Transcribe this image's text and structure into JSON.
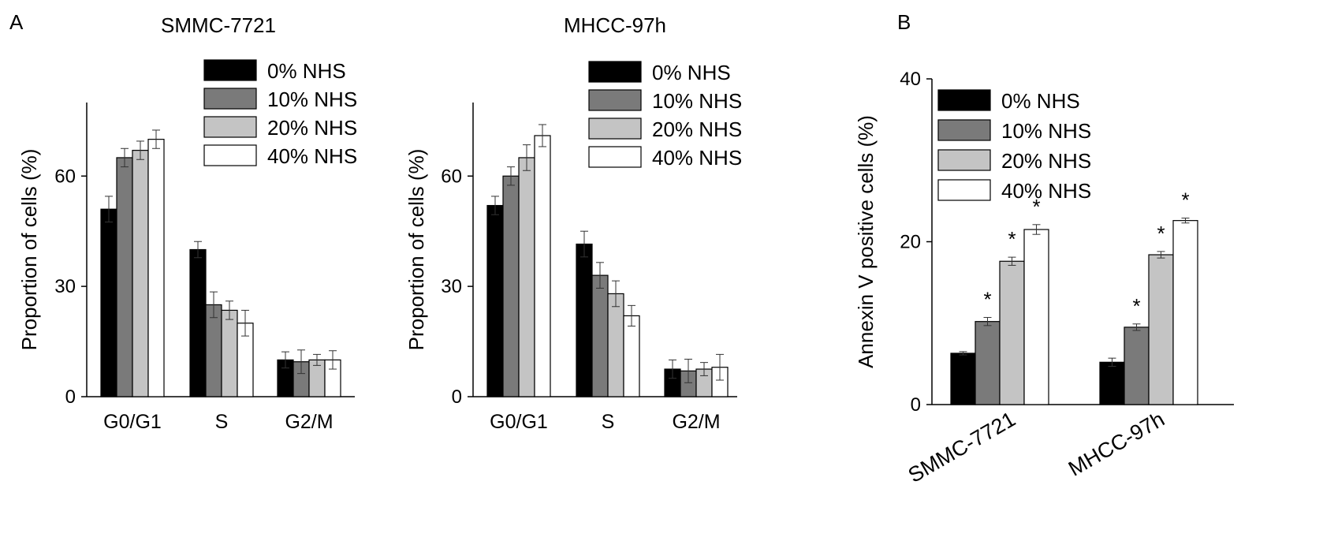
{
  "panels": {
    "a_label": "A",
    "b_label": "B"
  },
  "legend": {
    "entries": [
      "0% NHS",
      "10% NHS",
      "20% NHS",
      "40% NHS"
    ],
    "colors": [
      "#000000",
      "#7a7a7a",
      "#c4c4c4",
      "#ffffff"
    ]
  },
  "chart_data": [
    {
      "type": "bar",
      "title": "SMMC-7721",
      "xlabel": "",
      "ylabel": "Proportion of cells (%)",
      "categories": [
        "G0/G1",
        "S",
        "G2/M"
      ],
      "ylim": [
        0,
        80
      ],
      "yticks": [
        0,
        30,
        60
      ],
      "grid": false,
      "legend_position": "top-right",
      "series": [
        {
          "name": "0% NHS",
          "values": [
            51,
            40,
            10
          ],
          "errors": [
            3.5,
            2.2,
            2.2
          ]
        },
        {
          "name": "10% NHS",
          "values": [
            65,
            25,
            9.5
          ],
          "errors": [
            2.5,
            3.5,
            3.2
          ]
        },
        {
          "name": "20% NHS",
          "values": [
            67,
            23.5,
            10
          ],
          "errors": [
            2.5,
            2.5,
            1.5
          ]
        },
        {
          "name": "40% NHS",
          "values": [
            70,
            20,
            10
          ],
          "errors": [
            2.5,
            3.5,
            2.5
          ]
        }
      ]
    },
    {
      "type": "bar",
      "title": "MHCC-97h",
      "xlabel": "",
      "ylabel": "Proportion of cells (%)",
      "categories": [
        "G0/G1",
        "S",
        "G2/M"
      ],
      "ylim": [
        0,
        80
      ],
      "yticks": [
        0,
        30,
        60
      ],
      "grid": false,
      "legend_position": "top-right",
      "series": [
        {
          "name": "0% NHS",
          "values": [
            52,
            41.5,
            7.5
          ],
          "errors": [
            2.5,
            3.5,
            2.5
          ]
        },
        {
          "name": "10% NHS",
          "values": [
            60,
            33,
            7
          ],
          "errors": [
            2.5,
            3.5,
            3.2
          ]
        },
        {
          "name": "20% NHS",
          "values": [
            65,
            28,
            7.5
          ],
          "errors": [
            3.5,
            3.5,
            1.8
          ]
        },
        {
          "name": "40% NHS",
          "values": [
            71,
            22,
            8
          ],
          "errors": [
            3,
            2.8,
            3.5
          ]
        }
      ]
    },
    {
      "type": "bar",
      "title": "",
      "xlabel": "",
      "ylabel": "Annexin V positive cells (%)",
      "categories": [
        "SMMC-7721",
        "MHCC-97h"
      ],
      "ylim": [
        0,
        40
      ],
      "yticks": [
        0,
        20,
        40
      ],
      "grid": false,
      "legend_position": "top-left",
      "significance_marker": "*",
      "series": [
        {
          "name": "0% NHS",
          "values": [
            6.3,
            5.2
          ],
          "errors": [
            0.2,
            0.5
          ],
          "significant": [
            false,
            false
          ]
        },
        {
          "name": "10% NHS",
          "values": [
            10.2,
            9.5
          ],
          "errors": [
            0.5,
            0.4
          ],
          "significant": [
            true,
            true
          ]
        },
        {
          "name": "20% NHS",
          "values": [
            17.6,
            18.4
          ],
          "errors": [
            0.5,
            0.4
          ],
          "significant": [
            true,
            true
          ]
        },
        {
          "name": "40% NHS",
          "values": [
            21.5,
            22.6
          ],
          "errors": [
            0.6,
            0.3
          ],
          "significant": [
            true,
            true
          ]
        }
      ]
    }
  ]
}
